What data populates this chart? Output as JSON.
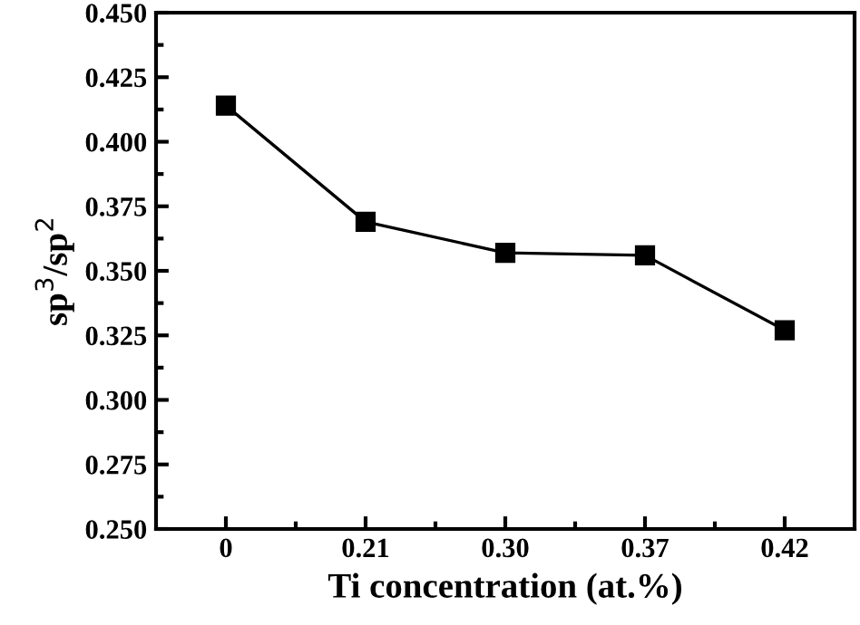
{
  "chart_data": {
    "type": "line",
    "xlabel": "Ti concentration (at.%)",
    "ylabel": "sp$^{3}$/sp$^{2}$",
    "categories": [
      "0",
      "0.21",
      "0.30",
      "0.37",
      "0.42"
    ],
    "series": [
      {
        "color": "#000000",
        "values": [
          0.414,
          0.369,
          0.357,
          0.356,
          0.327
        ]
      }
    ],
    "ylim": [
      0.25,
      0.45
    ],
    "yticks": [
      {
        "value": 0.25,
        "label": "0.250"
      },
      {
        "value": 0.275,
        "label": "0.275"
      },
      {
        "value": 0.3,
        "label": "0.300"
      },
      {
        "value": 0.325,
        "label": "0.325"
      },
      {
        "value": 0.35,
        "label": "0.350"
      },
      {
        "value": 0.375,
        "label": "0.375"
      },
      {
        "value": 0.4,
        "label": "0.400"
      },
      {
        "value": 0.425,
        "label": "0.425"
      },
      {
        "value": 0.45,
        "label": "0.450"
      }
    ],
    "marker": "square",
    "line_style": "solid",
    "grid": false,
    "legend": false
  }
}
